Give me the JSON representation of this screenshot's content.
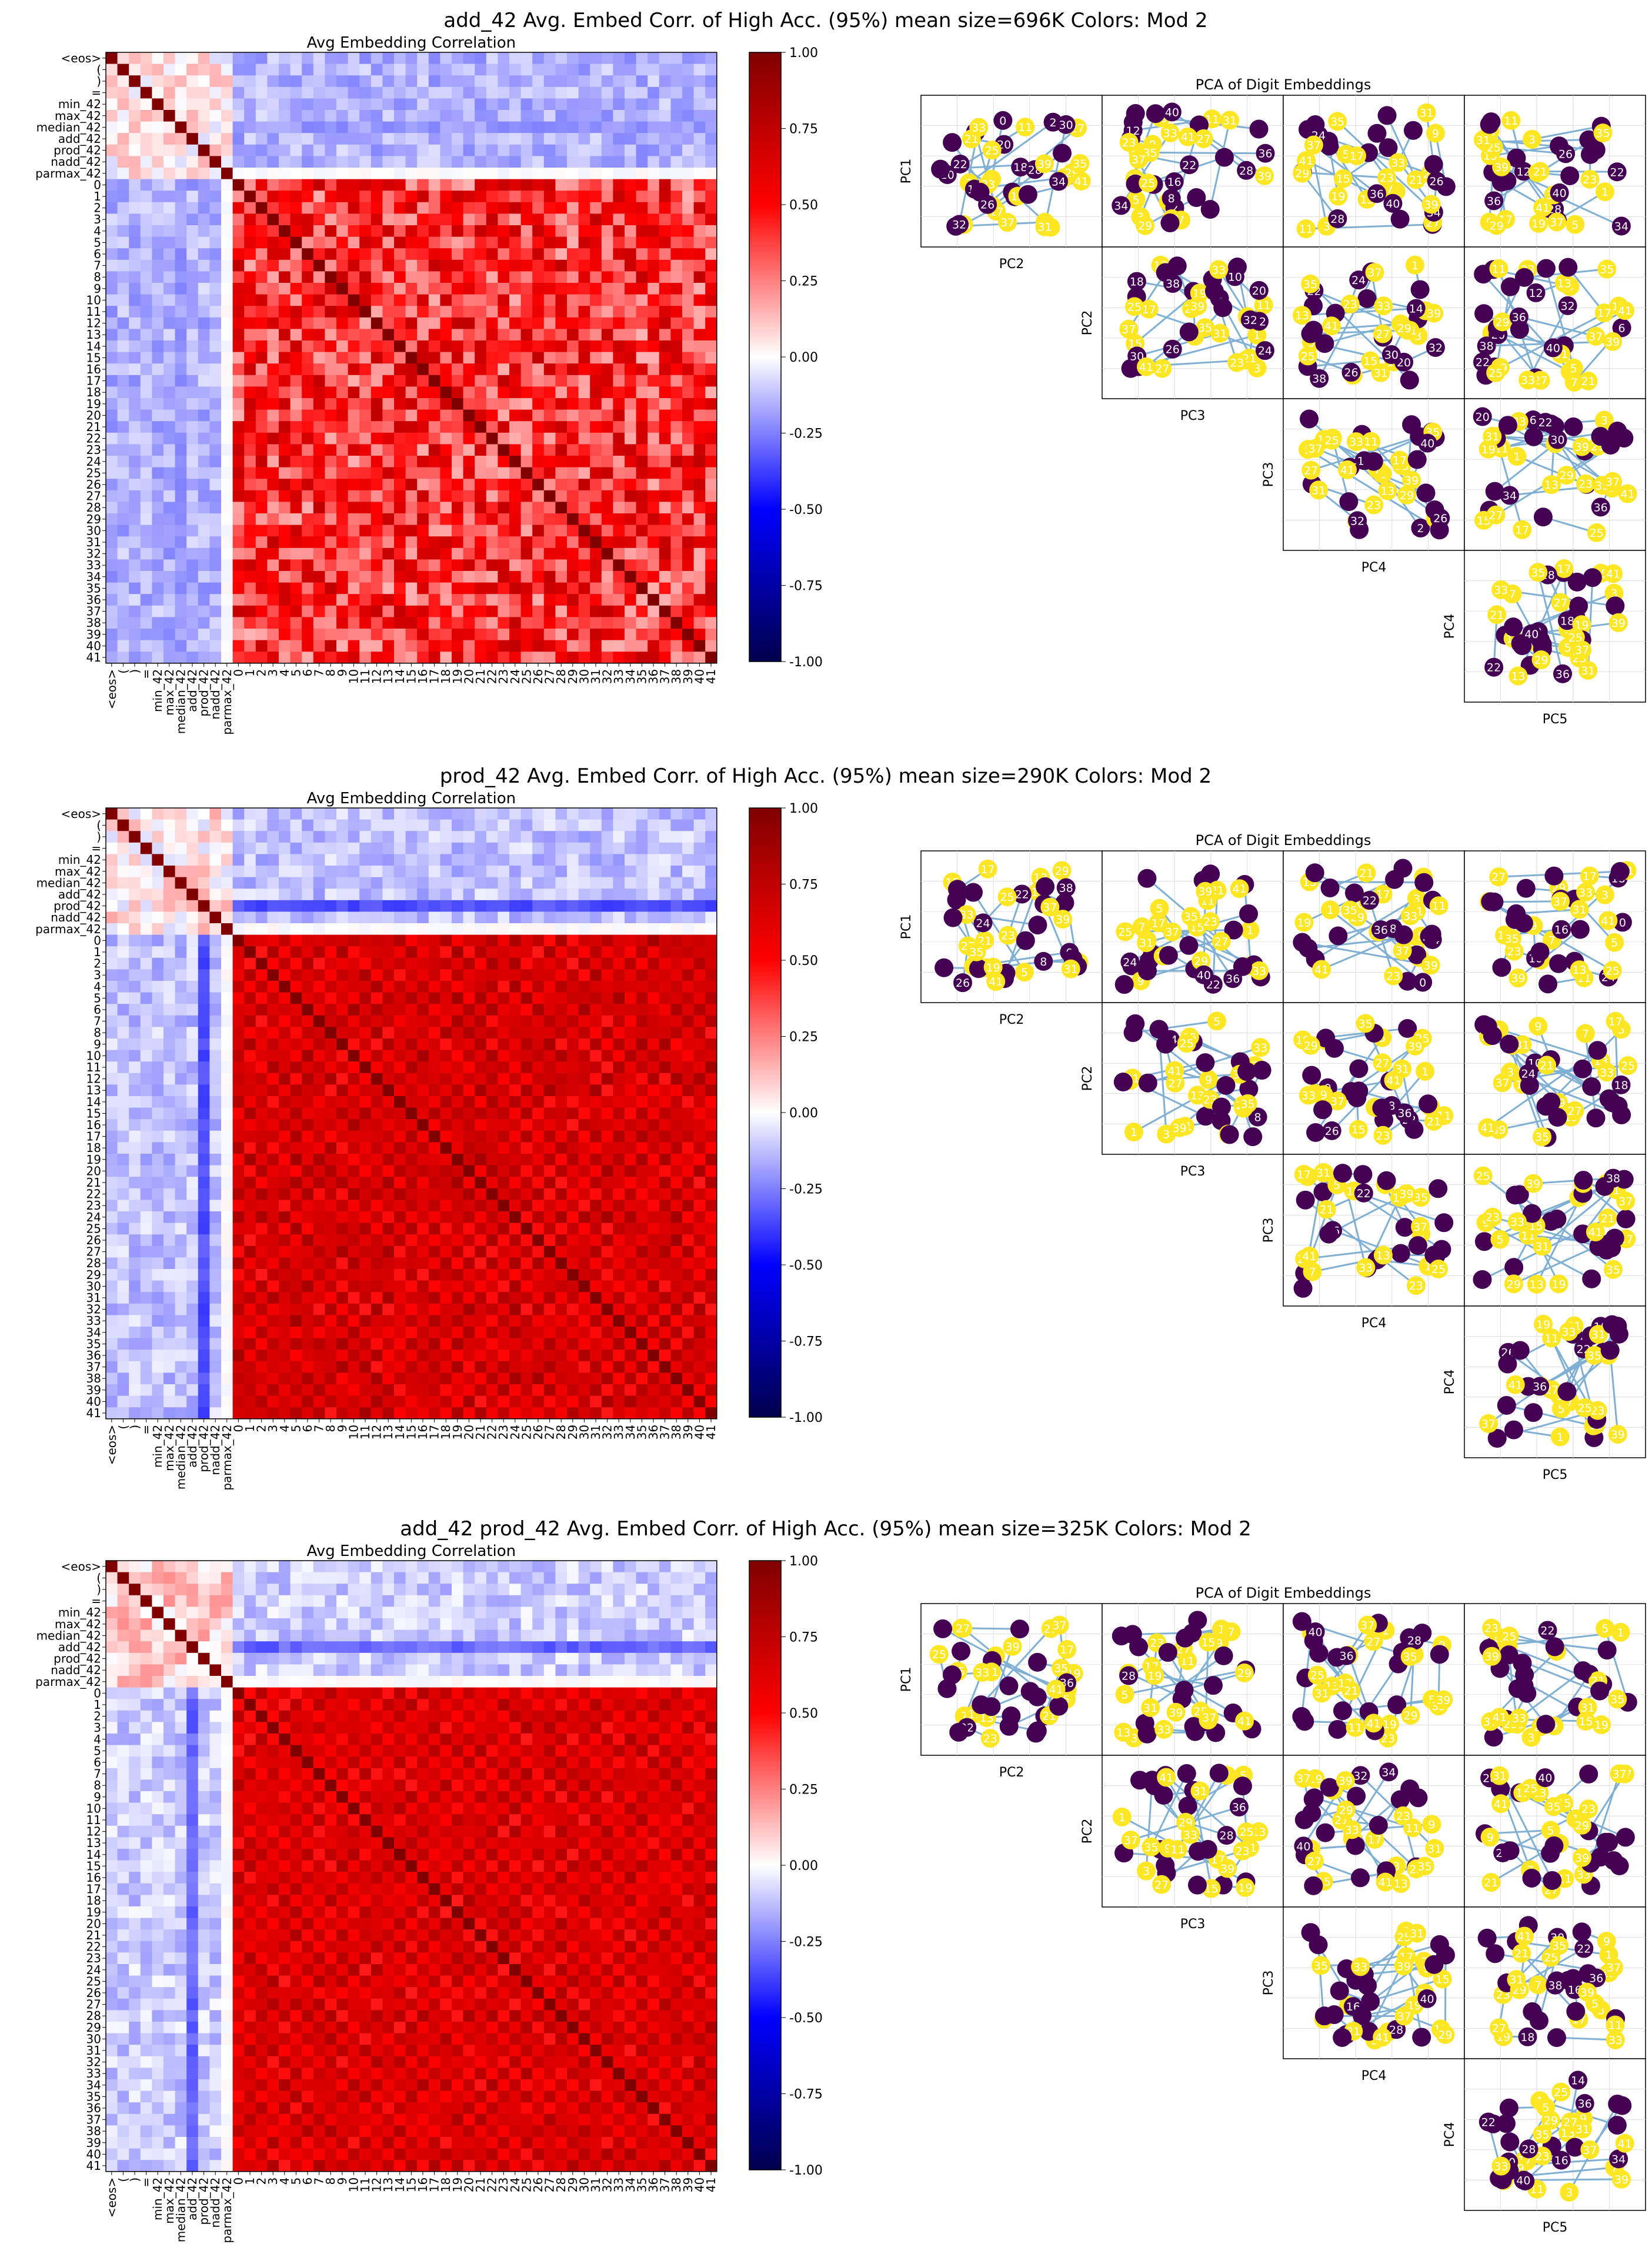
{
  "row_labels": [
    "<eos>",
    "(",
    ")",
    "=",
    "min_42",
    "max_42",
    "median_42",
    "add_42",
    "prod_42",
    "nadd_42",
    "parmax_42",
    "0",
    "1",
    "2",
    "3",
    "4",
    "5",
    "6",
    "7",
    "8",
    "9",
    "10",
    "11",
    "12",
    "13",
    "14",
    "15",
    "16",
    "17",
    "18",
    "19",
    "20",
    "21",
    "22",
    "23",
    "24",
    "25",
    "26",
    "27",
    "28",
    "29",
    "30",
    "31",
    "32",
    "33",
    "34",
    "35",
    "36",
    "37",
    "38",
    "39",
    "40",
    "41"
  ],
  "colors": {
    "parity_even": "#440154",
    "parity_odd": "#fde725",
    "edge": "#7fb0d4",
    "grid": "#dddddd"
  },
  "chart_data": [
    {
      "type": "heatmap",
      "suptitle": "add_42 Avg. Embed Corr. of High Acc. (95%) mean size=696K Colors: Mod 2",
      "title": "Avg Embedding Correlation",
      "colorbar": {
        "min": -1.0,
        "max": 1.0,
        "ticks": [
          "1.00",
          "0.75",
          "0.50",
          "0.25",
          "0.00",
          "-0.25",
          "-0.50",
          "-0.75",
          "-1.00"
        ],
        "colormap": "seismic"
      },
      "pattern": {
        "token_block_corr": 0.05,
        "token_digit_corr": -0.15,
        "digit_block_mean": 0.45,
        "digit_block_noise": 0.3,
        "band_stride": 0,
        "weak_token_col": 6,
        "weak_token_value": -0.2
      },
      "pca": {
        "title": "PCA of Digit Embeddings",
        "axes": [
          "PC1",
          "PC2",
          "PC3",
          "PC4",
          "PC5"
        ],
        "panels": [
          {
            "ylabel": "PC1",
            "xlabel": "PC2",
            "visible_labels": [
              "28",
              "12",
              "32",
              "0",
              "10",
              "22",
              "26",
              "30",
              "4",
              "20",
              "18",
              "34",
              "14",
              "2"
            ]
          },
          {
            "ylabel": "PC1",
            "xlabel": "PC3",
            "visible_labels": [
              "28",
              "2",
              "36",
              "16",
              "22",
              "40",
              "0",
              "34",
              "12",
              "8"
            ]
          },
          {
            "ylabel": "PC1",
            "xlabel": "PC4",
            "visible_labels": [
              "28",
              "16",
              "26",
              "22",
              "40",
              "36",
              "24",
              "34",
              "10"
            ]
          },
          {
            "ylabel": "PC1",
            "xlabel": "PC5",
            "visible_labels": [
              "28",
              "12",
              "22",
              "36",
              "34",
              "26",
              "0",
              "40"
            ]
          },
          {
            "ylabel": "PC2",
            "xlabel": "PC3",
            "visible_labels": [
              "2",
              "30",
              "12",
              "26",
              "38",
              "10",
              "24",
              "20",
              "18",
              "32"
            ]
          },
          {
            "ylabel": "PC2",
            "xlabel": "PC4",
            "visible_labels": [
              "14",
              "30",
              "26",
              "24",
              "38",
              "20",
              "22",
              "32",
              "8"
            ]
          },
          {
            "ylabel": "PC2",
            "xlabel": "PC5",
            "visible_labels": [
              "36",
              "38",
              "12",
              "22",
              "20",
              "40",
              "6",
              "32"
            ]
          },
          {
            "ylabel": "PC3",
            "xlabel": "PC4",
            "visible_labels": [
              "40",
              "26",
              "32",
              "36",
              "2",
              "12",
              "18"
            ]
          },
          {
            "ylabel": "PC3",
            "xlabel": "PC5",
            "visible_labels": [
              "30",
              "36",
              "6",
              "22",
              "34",
              "2",
              "20"
            ]
          },
          {
            "ylabel": "PC4",
            "xlabel": "PC5",
            "visible_labels": [
              "36",
              "24",
              "28",
              "18",
              "40",
              "6",
              "22",
              "2"
            ]
          }
        ]
      }
    },
    {
      "type": "heatmap",
      "suptitle": "prod_42 Avg. Embed Corr. of High Acc. (95%) mean size=290K Colors: Mod 2",
      "title": "Avg Embedding Correlation",
      "colorbar": {
        "min": -1.0,
        "max": 1.0,
        "ticks": [
          "1.00",
          "0.75",
          "0.50",
          "0.25",
          "0.00",
          "-0.25",
          "-0.50",
          "-0.75",
          "-1.00"
        ],
        "colormap": "seismic"
      },
      "pattern": {
        "token_block_corr": 0.05,
        "token_digit_corr": -0.12,
        "digit_block_mean": 0.62,
        "digit_block_noise": 0.12,
        "band_stride": 2,
        "weak_token_col": 8,
        "weak_token_value": -0.35
      },
      "pca": {
        "title": "PCA of Digit Embeddings",
        "axes": [
          "PC1",
          "PC2",
          "PC3",
          "PC4",
          "PC5"
        ],
        "panels": [
          {
            "ylabel": "PC1",
            "xlabel": "PC2",
            "visible_labels": [
              "0",
              "26",
              "8",
              "24",
              "22",
              "21",
              "38",
              "33"
            ]
          },
          {
            "ylabel": "PC1",
            "xlabel": "PC3",
            "visible_labels": [
              "36",
              "24",
              "22",
              "8",
              "40",
              "39"
            ]
          },
          {
            "ylabel": "PC1",
            "xlabel": "PC4",
            "visible_labels": [
              "36",
              "0",
              "24",
              "22",
              "8",
              "26"
            ]
          },
          {
            "ylabel": "PC1",
            "xlabel": "PC5",
            "visible_labels": [
              "0",
              "24",
              "16",
              "10",
              "18"
            ]
          },
          {
            "ylabel": "PC2",
            "xlabel": "PC3",
            "visible_labels": [
              "8",
              "24",
              "0",
              "21",
              "25",
              "39"
            ]
          },
          {
            "ylabel": "PC2",
            "xlabel": "PC4",
            "visible_labels": [
              "22",
              "8",
              "26",
              "36",
              "0"
            ]
          },
          {
            "ylabel": "PC2",
            "xlabel": "PC5",
            "visible_labels": [
              "10",
              "18",
              "24",
              "0",
              "31",
              "39",
              "33"
            ]
          },
          {
            "ylabel": "PC3",
            "xlabel": "PC4",
            "visible_labels": [
              "22",
              "26"
            ]
          },
          {
            "ylabel": "PC3",
            "xlabel": "PC5",
            "visible_labels": [
              "38"
            ]
          },
          {
            "ylabel": "PC4",
            "xlabel": "PC5",
            "visible_labels": [
              "26",
              "10",
              "36",
              "22"
            ]
          }
        ]
      }
    },
    {
      "type": "heatmap",
      "suptitle": "add_42 prod_42 Avg. Embed Corr. of High Acc. (95%) mean size=325K Colors: Mod 2",
      "title": "Avg Embedding Correlation",
      "colorbar": {
        "min": -1.0,
        "max": 1.0,
        "ticks": [
          "1.00",
          "0.75",
          "0.50",
          "0.25",
          "0.00",
          "-0.25",
          "-0.50",
          "-0.75",
          "-1.00"
        ],
        "colormap": "seismic"
      },
      "pattern": {
        "token_block_corr": 0.1,
        "token_digit_corr": -0.1,
        "digit_block_mean": 0.6,
        "digit_block_noise": 0.1,
        "band_stride": 2,
        "weak_token_col": 7,
        "weak_token_value": -0.3
      },
      "pca": {
        "title": "PCA of Digit Embeddings",
        "axes": [
          "PC1",
          "PC2",
          "PC3",
          "PC4",
          "PC5"
        ],
        "panels": [
          {
            "ylabel": "PC1",
            "xlabel": "PC2",
            "visible_labels": [
              "36",
              "21",
              "22"
            ]
          },
          {
            "ylabel": "PC1",
            "xlabel": "PC3",
            "visible_labels": [
              "28",
              "16"
            ]
          },
          {
            "ylabel": "PC1",
            "xlabel": "PC4",
            "visible_labels": [
              "36",
              "40",
              "28"
            ]
          },
          {
            "ylabel": "PC1",
            "xlabel": "PC5",
            "visible_labels": [
              "22"
            ]
          },
          {
            "ylabel": "PC2",
            "xlabel": "PC3",
            "visible_labels": [
              "28",
              "39",
              "36"
            ]
          },
          {
            "ylabel": "PC2",
            "xlabel": "PC4",
            "visible_labels": [
              "34",
              "32",
              "40"
            ]
          },
          {
            "ylabel": "PC2",
            "xlabel": "PC5",
            "visible_labels": [
              "28",
              "22",
              "40"
            ]
          },
          {
            "ylabel": "PC3",
            "xlabel": "PC4",
            "visible_labels": [
              "16",
              "40",
              "28"
            ]
          },
          {
            "ylabel": "PC3",
            "xlabel": "PC5",
            "visible_labels": [
              "22",
              "16",
              "36",
              "38",
              "30",
              "18"
            ]
          },
          {
            "ylabel": "PC4",
            "xlabel": "PC5",
            "visible_labels": [
              "20",
              "14",
              "34",
              "40",
              "22",
              "36",
              "16",
              "28"
            ]
          }
        ]
      }
    }
  ]
}
